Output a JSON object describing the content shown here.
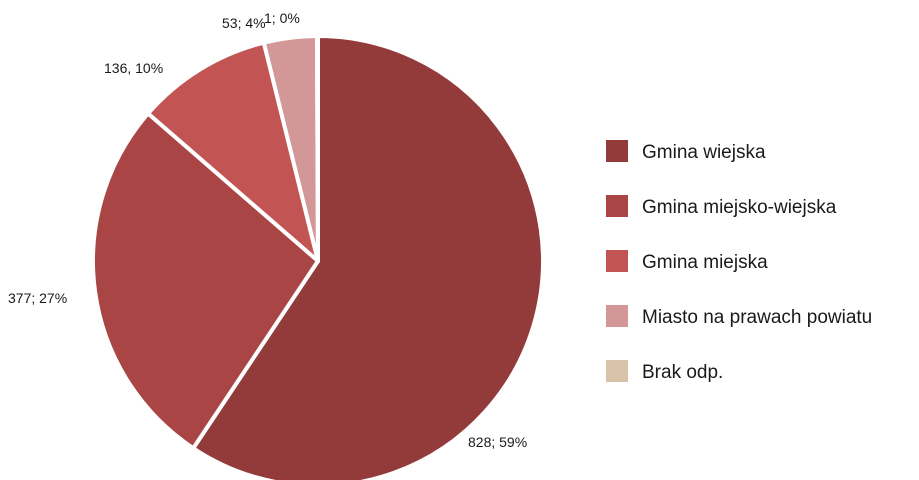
{
  "chart_data": {
    "type": "pie",
    "title": "",
    "categories": [
      "Gmina wiejska",
      "Gmina miejsko-wiejska",
      "Gmina miejska",
      "Miasto na prawach powiatu",
      "Brak odp."
    ],
    "values": [
      828,
      377,
      136,
      53,
      1
    ],
    "data_labels": [
      "828; 59%",
      "377; 27%",
      "136, 10%",
      "53; 4%",
      "1; 0%"
    ],
    "colors": [
      "#933b3b",
      "#a94545",
      "#c25454",
      "#d49797",
      "#d9c3a8"
    ],
    "legend_position": "right",
    "start": "12 o'clock",
    "direction": "clockwise"
  }
}
